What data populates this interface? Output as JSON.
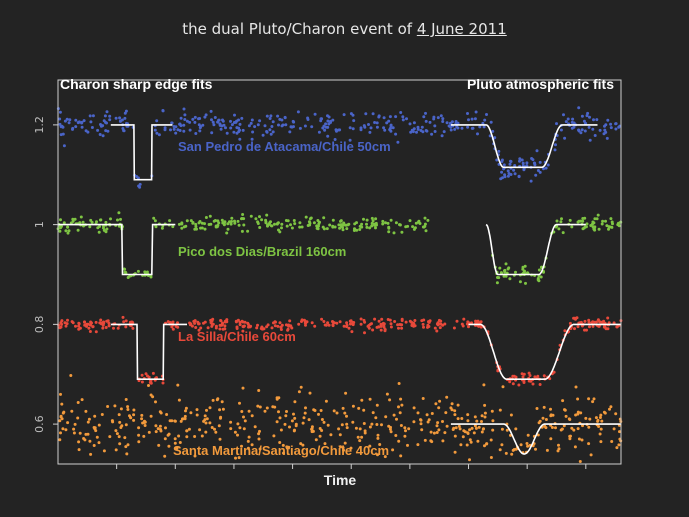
{
  "title_prefix": "the dual Pluto/Charon event of ",
  "title_date": "4 June 2011",
  "chart_data": {
    "type": "scatter",
    "title": "the dual Pluto/Charon event of 4 June 2011",
    "xlabel": "Time",
    "ylabel": "",
    "ylim": [
      0.52,
      1.29
    ],
    "y_ticks": [
      0.6,
      0.8,
      1,
      1.2
    ],
    "y_tick_labels": [
      "0.6",
      "0.8",
      "1",
      "1.2"
    ],
    "x_ticks": [
      1,
      2,
      3,
      4,
      5,
      6,
      7,
      8,
      9
    ],
    "xlim": [
      0,
      9.6
    ],
    "annotations": {
      "left": "Charon sharp edge fits",
      "right": "Pluto atmospheric fits"
    },
    "axis_color": "#cfcfcf",
    "fit_color": "#ffffff",
    "series": [
      {
        "name": "San Pedro de Atacama/Chile 50cm",
        "color": "#4a64c8",
        "baseline": 1.2,
        "noise": 0.012,
        "gaps": [],
        "charon_fit": {
          "start": 1.3,
          "end": 1.6,
          "depth": 0.11,
          "x_from": 0.9,
          "x_to": 1.95
        },
        "pluto_fit": {
          "start": 7.3,
          "end": 8.6,
          "depth": 0.085,
          "x_from": 6.7,
          "x_to": 9.2,
          "ingress": 0.3,
          "egress": 0.35
        }
      },
      {
        "name": "Pico dos Dias/Brazil 160cm",
        "color": "#7ec443",
        "baseline": 1.0,
        "noise": 0.008,
        "gaps": [
          [
            6.35,
            7.4
          ]
        ],
        "charon_fit": {
          "start": 1.1,
          "end": 1.6,
          "depth": 0.1,
          "x_from": 0.0,
          "x_to": 2.0
        },
        "pluto_fit": {
          "start": 7.3,
          "end": 8.5,
          "depth": 0.1,
          "x_from": 7.3,
          "x_to": 9.0,
          "ingress": 0.2,
          "egress": 0.3
        }
      },
      {
        "name": "La Silla/Chile 60cm",
        "color": "#e8493a",
        "baseline": 0.8,
        "noise": 0.006,
        "gaps": [],
        "charon_fit": {
          "start": 1.35,
          "end": 1.8,
          "depth": 0.11,
          "x_from": 0.9,
          "x_to": 2.2
        },
        "pluto_fit": {
          "start": 7.2,
          "end": 8.8,
          "depth": 0.11,
          "x_from": 7.0,
          "x_to": 9.6,
          "ingress": 0.45,
          "egress": 0.5
        }
      },
      {
        "name": "Santa Martina/Santiago/Chile 40cm",
        "color": "#f29a3c",
        "baseline": 0.6,
        "noise": 0.03,
        "gaps": [],
        "charon_fit": null,
        "pluto_fit": {
          "start": 7.6,
          "end": 8.3,
          "depth": 0.06,
          "x_from": 6.7,
          "x_to": 9.6,
          "ingress": 0.35,
          "egress": 0.35
        }
      }
    ]
  }
}
